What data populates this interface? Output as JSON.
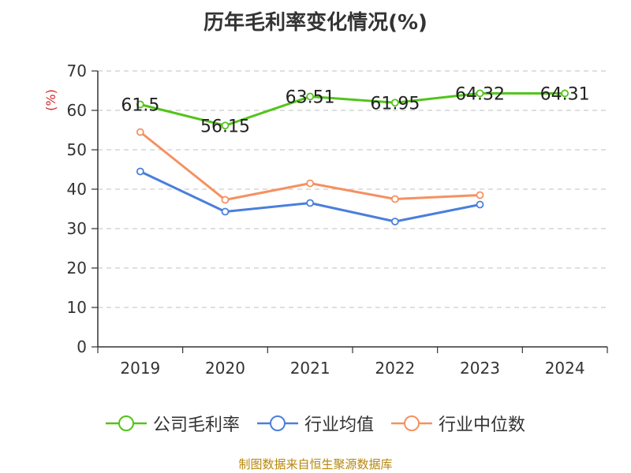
{
  "title": "历年毛利率变化情况(%)",
  "source": "制图数据来自恒生聚源数据库",
  "chart_data": {
    "type": "line",
    "title": "历年毛利率变化情况(%)",
    "ylabel": "(%)",
    "xlabel": "",
    "ylim": [
      0,
      70
    ],
    "yticks": [
      0,
      10,
      20,
      30,
      40,
      50,
      60,
      70
    ],
    "categories": [
      "2019",
      "2020",
      "2021",
      "2022",
      "2023",
      "2024"
    ],
    "grid": "horizontal dashed",
    "legend_position": "bottom",
    "series": [
      {
        "name": "公司毛利率",
        "color": "#52c41a",
        "values": [
          61.5,
          56.15,
          63.51,
          61.95,
          64.32,
          64.31
        ],
        "labels": [
          "61.5",
          "56.15",
          "63.51",
          "61.95",
          "64.32",
          "64.31"
        ],
        "show_labels": true
      },
      {
        "name": "行业均值",
        "color": "#4a7fdc",
        "values": [
          44.5,
          34.3,
          36.5,
          31.8,
          36.1,
          null
        ],
        "show_labels": false
      },
      {
        "name": "行业中位数",
        "color": "#f59160",
        "values": [
          54.5,
          37.3,
          41.5,
          37.5,
          38.5,
          null
        ],
        "show_labels": false
      }
    ]
  }
}
